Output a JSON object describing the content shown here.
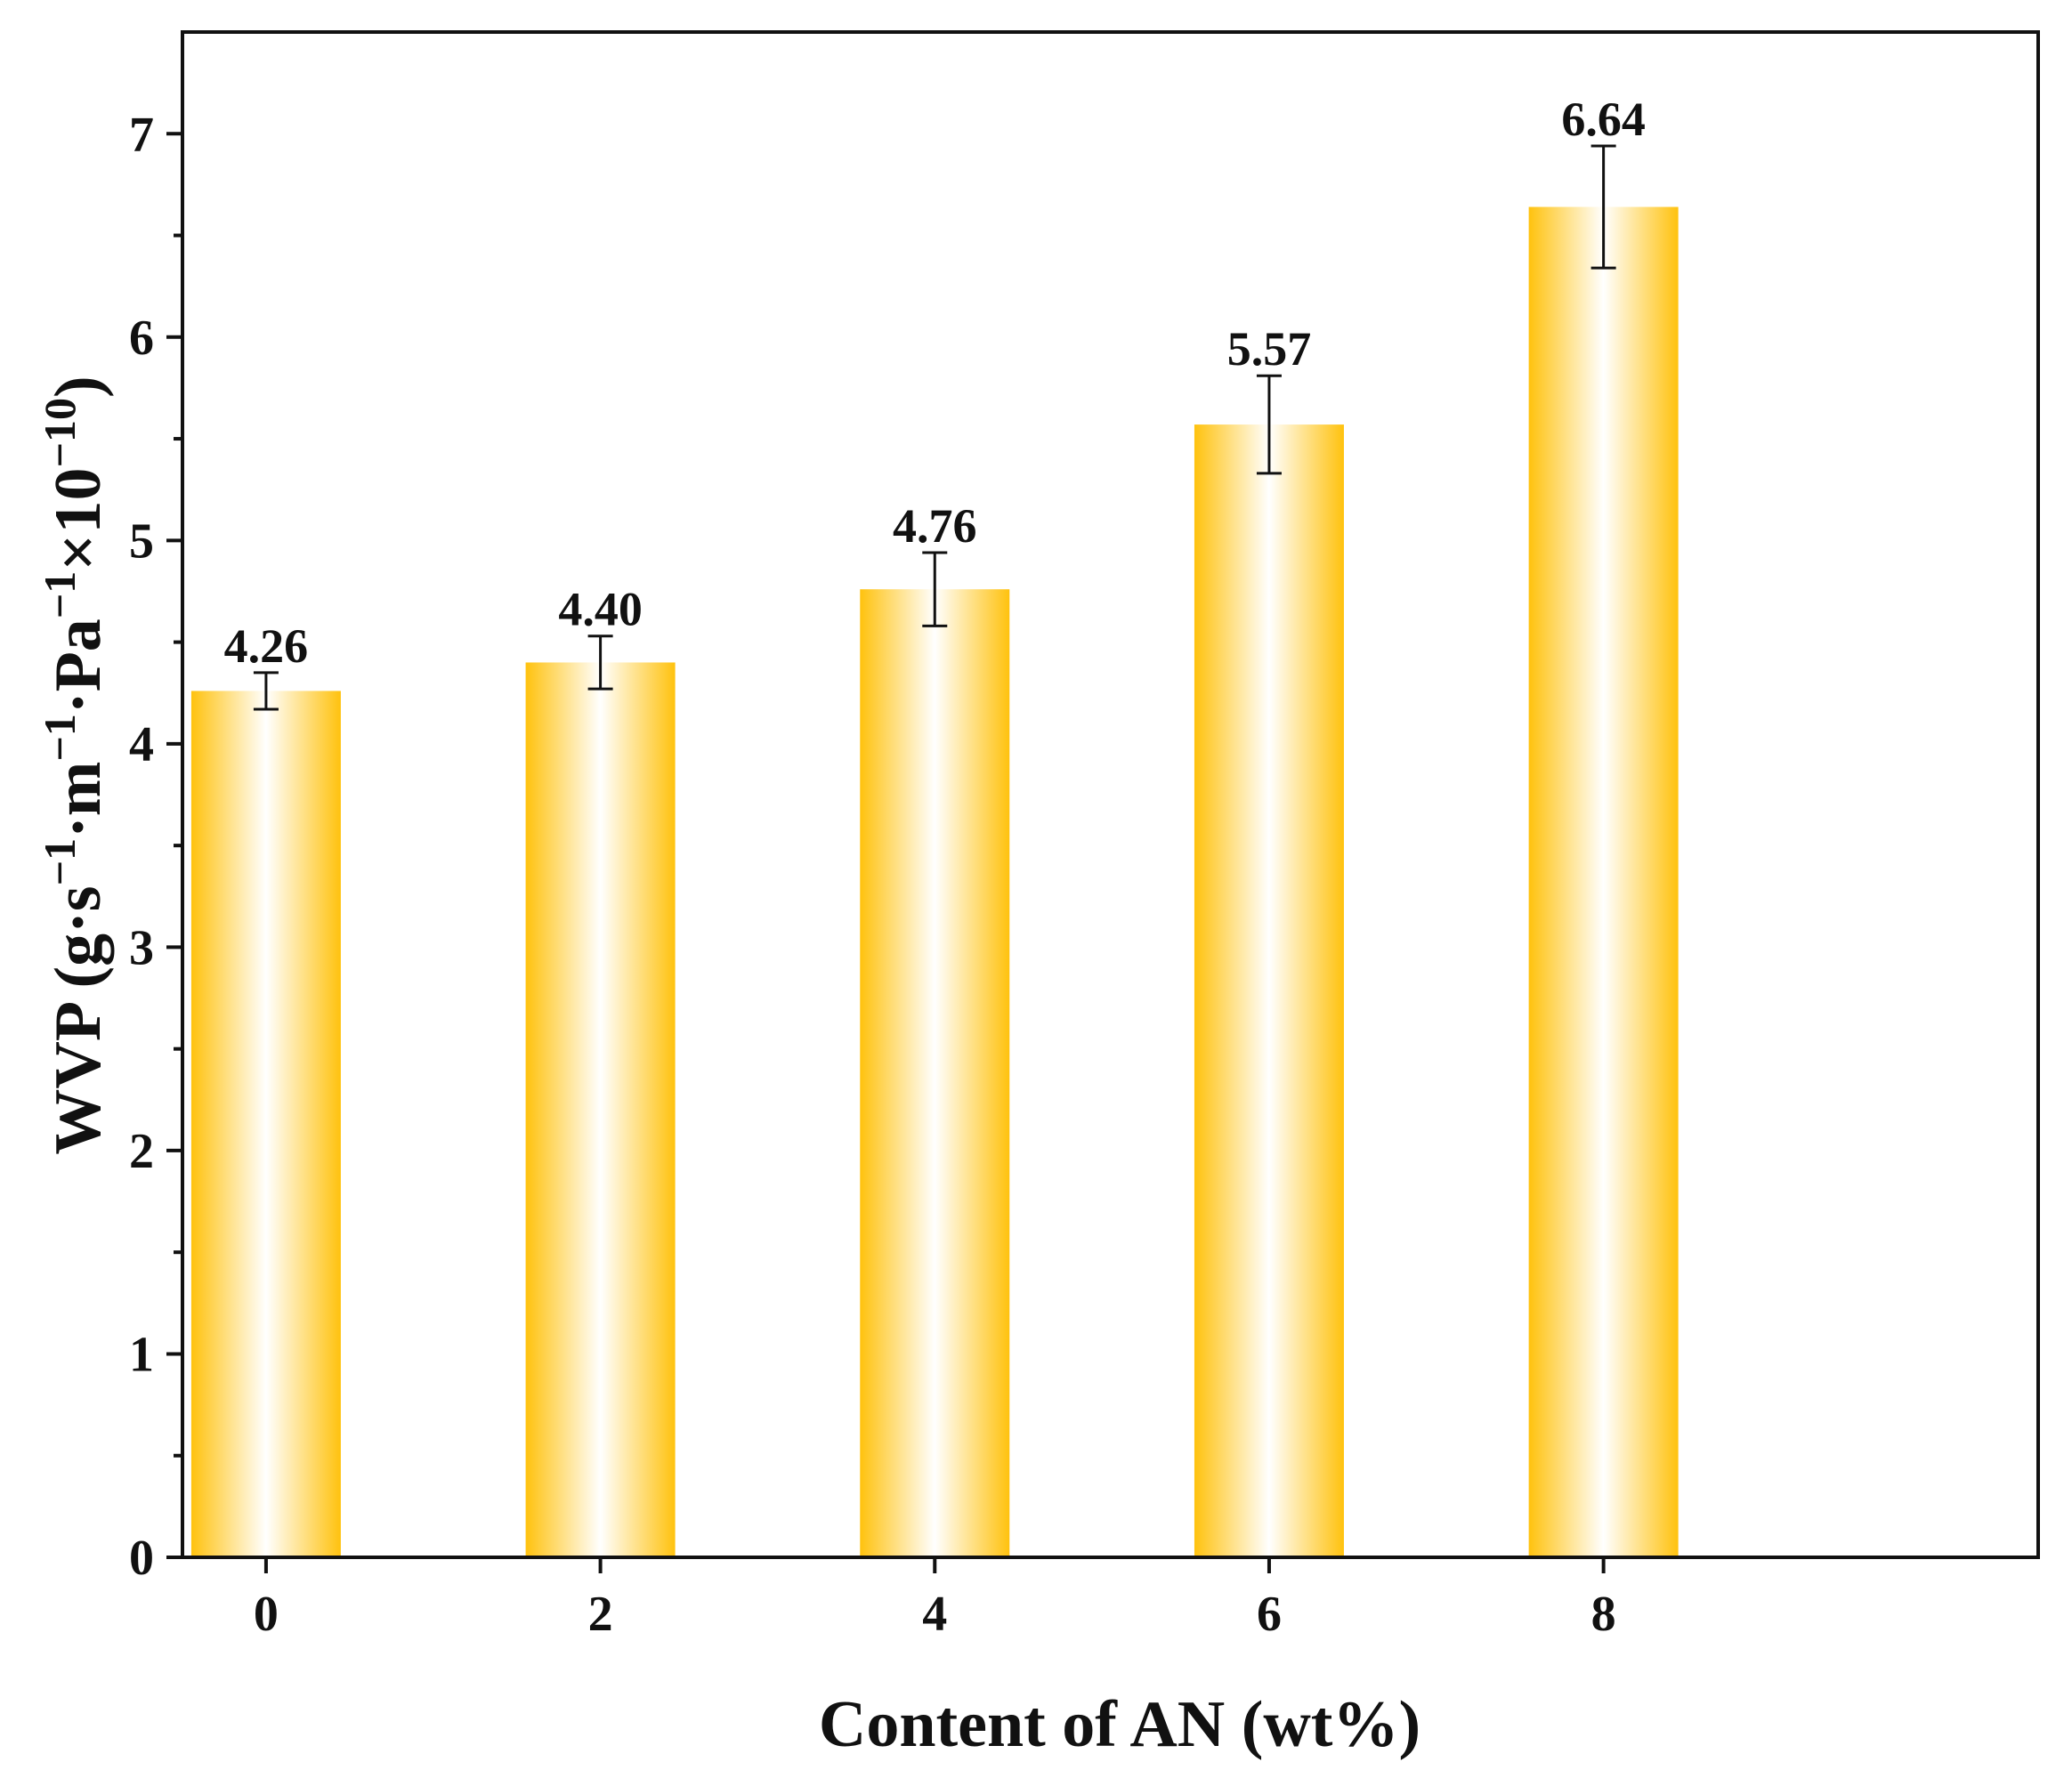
{
  "chart_data": {
    "type": "bar",
    "title": "",
    "xlabel": "Content of AN (wt%)",
    "ylabel_parts": [
      {
        "text": "WVP (g·s",
        "sup": false
      },
      {
        "text": "−1",
        "sup": true
      },
      {
        "text": "·m",
        "sup": false
      },
      {
        "text": "−1",
        "sup": true
      },
      {
        "text": "·Pa",
        "sup": false
      },
      {
        "text": "−1",
        "sup": true
      },
      {
        "text": "×10",
        "sup": false
      },
      {
        "text": "−10",
        "sup": true
      },
      {
        "text": ")",
        "sup": false
      }
    ],
    "categories": [
      "0",
      "2",
      "4",
      "6",
      "8"
    ],
    "values": [
      4.26,
      4.4,
      4.76,
      5.57,
      6.64
    ],
    "value_labels": [
      "4.26",
      "4.40",
      "4.76",
      "5.57",
      "6.64"
    ],
    "errors": [
      0.09,
      0.13,
      0.18,
      0.24,
      0.3
    ],
    "ylim": [
      0,
      7.5
    ],
    "yticks": [
      "0",
      "1",
      "2",
      "3",
      "4",
      "5",
      "6",
      "7"
    ],
    "grid": false,
    "legend": "none",
    "bar_color": "#FFC20E",
    "bar_center_color": "#FFFFFF"
  }
}
